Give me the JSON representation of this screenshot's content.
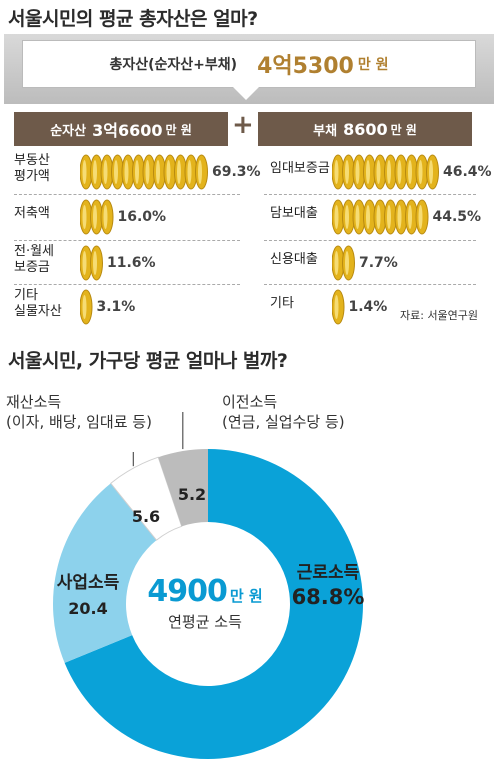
{
  "title": "서울시민의 평균 총자산은 얼마?",
  "total_label": "총자산(순자산+부채)",
  "total_value": "4억5300",
  "total_unit": "만 원",
  "net_label": "순자산",
  "net_value": "3억6600",
  "net_unit": "만 원",
  "debt_label": "부채",
  "debt_value": "8600",
  "debt_unit": "만 원",
  "source": "자료: 서울연구원",
  "title2": "서울시민, 가구당 평균 얼마나 벌까?",
  "property_annotation": [
    "재산소득",
    "(이자, 배당, 임대료 등)"
  ],
  "transfer_annotation": [
    "이전소득",
    "(연금, 실업수당 등)"
  ],
  "donut_center_value": "4900",
  "donut_center_unit": "만 원",
  "donut_center_label": "연평균 소득",
  "colors": {
    "coin": "#e3b31c",
    "coin_edge": "#b88a10",
    "brown_box": "#6e5a4a",
    "blue": "#0aa2d8",
    "light_blue": "#8dd2ec",
    "gray": "#bcbcbc"
  },
  "chart_data": [
    {
      "type": "bar",
      "categories": [
        "부동산 평가액",
        "저축액",
        "전·월세 보증금",
        "기타 실물자산"
      ],
      "category_lines": [
        [
          "부동산",
          "평가액"
        ],
        [
          "저축액"
        ],
        [
          "전·월세",
          "보증금"
        ],
        [
          "기타",
          "실물자산"
        ]
      ],
      "values": [
        69.3,
        16.0,
        11.6,
        3.1
      ],
      "labels": [
        "69.3%",
        "16.0%",
        "11.6%",
        "3.1%"
      ]
    },
    {
      "type": "bar",
      "categories": [
        "임대보증금",
        "담보대출",
        "신용대출",
        "기타"
      ],
      "category_lines": [
        [
          "임대보증금"
        ],
        [
          "담보대출"
        ],
        [
          "신용대출"
        ],
        [
          "기타"
        ]
      ],
      "values": [
        46.4,
        44.5,
        7.7,
        1.4
      ],
      "labels": [
        "46.4%",
        "44.5%",
        "7.7%",
        "1.4%"
      ]
    },
    {
      "type": "pie",
      "categories": [
        "근로소득",
        "사업소득",
        "재산소득",
        "이전소득"
      ],
      "values": [
        68.8,
        20.4,
        5.6,
        5.2
      ],
      "labels": [
        "68.8%",
        "20.4",
        "5.6",
        "5.2"
      ]
    }
  ]
}
